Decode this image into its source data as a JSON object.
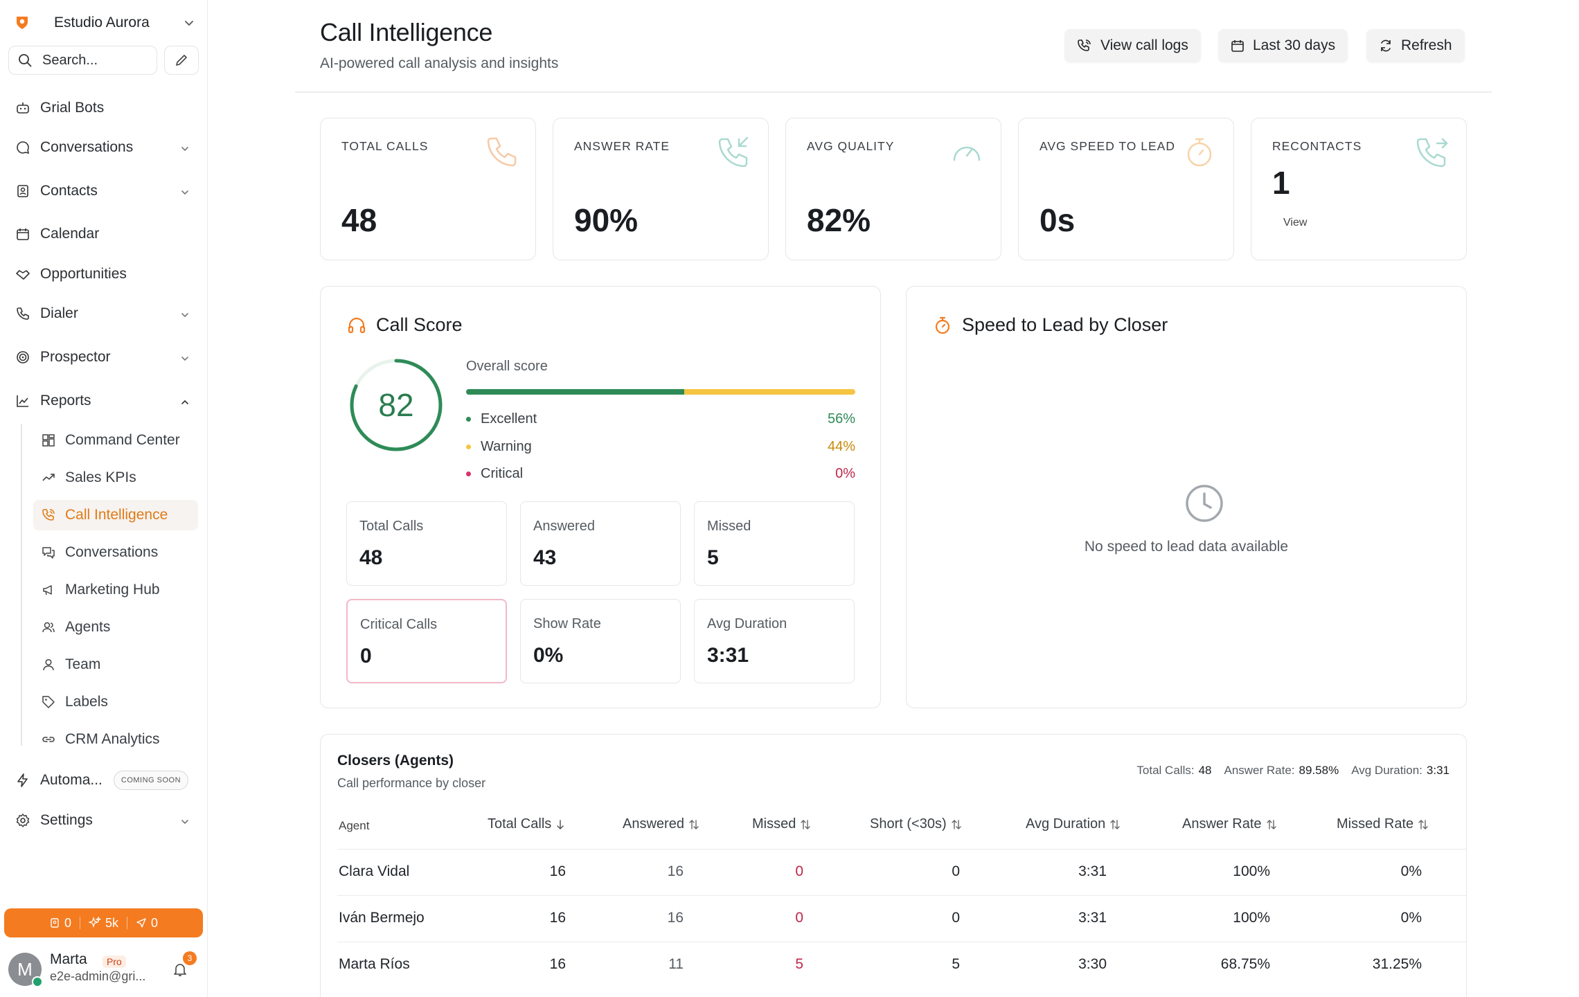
{
  "workspace": {
    "name": "Estudio Aurora"
  },
  "search": {
    "placeholder": "Search..."
  },
  "nav": {
    "grial_bots": "Grial Bots",
    "conversations": "Conversations",
    "contacts": "Contacts",
    "calendar": "Calendar",
    "opportunities": "Opportunities",
    "dialer": "Dialer",
    "prospector": "Prospector",
    "reports": "Reports",
    "automations": "Automa...",
    "automations_badge": "COMING SOON",
    "settings": "Settings"
  },
  "reports_sub": [
    {
      "label": "Command Center",
      "icon": "grid-icon"
    },
    {
      "label": "Sales KPIs",
      "icon": "trend-icon"
    },
    {
      "label": "Call Intelligence",
      "icon": "phone-call-icon"
    },
    {
      "label": "Conversations",
      "icon": "chat-icon"
    },
    {
      "label": "Marketing Hub",
      "icon": "megaphone-icon"
    },
    {
      "label": "Agents",
      "icon": "users-icon"
    },
    {
      "label": "Team",
      "icon": "user-icon"
    },
    {
      "label": "Labels",
      "icon": "tag-icon"
    },
    {
      "label": "CRM Analytics",
      "icon": "link-icon"
    }
  ],
  "credits": {
    "contacts": "0",
    "ai": "5k",
    "sends": "0"
  },
  "user": {
    "initial": "M",
    "name": "Marta",
    "plan": "Pro",
    "email": "e2e-admin@gri...",
    "notifications": "3"
  },
  "header": {
    "title": "Call Intelligence",
    "subtitle": "AI-powered call analysis and insights",
    "btn_logs": "View call logs",
    "btn_range": "Last 30 days",
    "btn_refresh": "Refresh"
  },
  "stats": [
    {
      "label": "TOTAL CALLS",
      "value": "48"
    },
    {
      "label": "ANSWER RATE",
      "value": "90%"
    },
    {
      "label": "AVG QUALITY",
      "value": "82%"
    },
    {
      "label": "AVG SPEED TO LEAD",
      "value": "0s"
    },
    {
      "label": "RECONTACTS",
      "value": "1",
      "link": "View"
    }
  ],
  "call_score": {
    "title": "Call Score",
    "score": "82",
    "score_fraction": 0.82,
    "overall_label": "Overall score",
    "excellent_fraction": 0.56,
    "breakdown": [
      {
        "label": "Excellent",
        "pct": "56%",
        "color": "#2e8b57"
      },
      {
        "label": "Warning",
        "pct": "44%",
        "color": "#e0a71a"
      },
      {
        "label": "Critical",
        "pct": "0%",
        "color": "#c0264a"
      }
    ],
    "tiles": [
      {
        "label": "Total Calls",
        "value": "48"
      },
      {
        "label": "Answered",
        "value": "43"
      },
      {
        "label": "Missed",
        "value": "5"
      },
      {
        "label": "Critical Calls",
        "value": "0"
      },
      {
        "label": "Show Rate",
        "value": "0%"
      },
      {
        "label": "Avg Duration",
        "value": "3:31"
      }
    ]
  },
  "speed_to_lead": {
    "title": "Speed to Lead by Closer",
    "empty": "No speed to lead data available"
  },
  "closers": {
    "title": "Closers (Agents)",
    "subtitle": "Call performance by closer",
    "summary": {
      "total_calls_label": "Total Calls:",
      "total_calls": "48",
      "answer_rate_label": "Answer Rate:",
      "answer_rate": "89.58%",
      "avg_duration_label": "Avg Duration:",
      "avg_duration": "3:31"
    },
    "columns": {
      "agent": "Agent",
      "total_calls": "Total Calls",
      "answered": "Answered",
      "missed": "Missed",
      "short": "Short (<30s)",
      "avg_duration": "Avg Duration",
      "answer_rate": "Answer Rate",
      "missed_rate": "Missed Rate"
    },
    "rows": [
      {
        "agent": "Clara Vidal",
        "total_calls": "16",
        "answered": "16",
        "missed": "0",
        "short": "0",
        "avg_duration": "3:31",
        "answer_rate": "100%",
        "missed_rate": "0%"
      },
      {
        "agent": "Iván Bermejo",
        "total_calls": "16",
        "answered": "16",
        "missed": "0",
        "short": "0",
        "avg_duration": "3:31",
        "answer_rate": "100%",
        "missed_rate": "0%"
      },
      {
        "agent": "Marta Ríos",
        "total_calls": "16",
        "answered": "11",
        "missed": "5",
        "short": "5",
        "avg_duration": "3:30",
        "answer_rate": "68.75%",
        "missed_rate": "31.25%"
      }
    ]
  }
}
